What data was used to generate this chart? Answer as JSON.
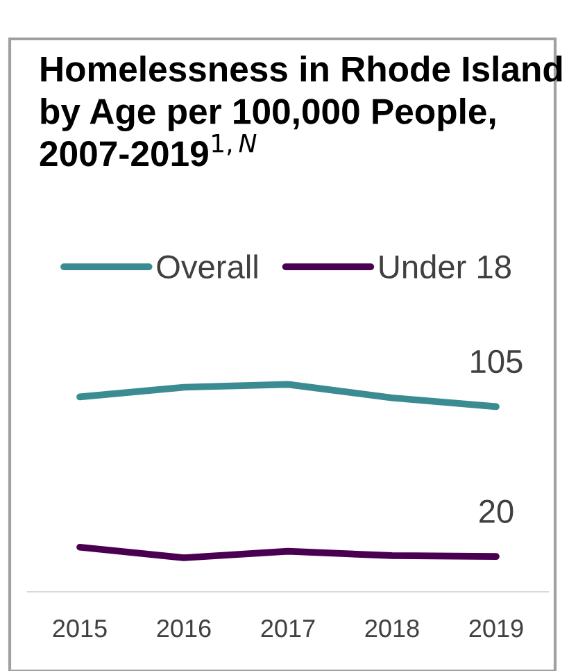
{
  "chart_data": {
    "type": "line",
    "title": "Homelessness in Rhode Island by Age per 100,000 People, 2007-2019$^{1,N}$",
    "categories": [
      "2015",
      "2016",
      "2017",
      "2018",
      "2019"
    ],
    "series": [
      {
        "name": "Overall",
        "color": "#3a8c92",
        "values": [
          110.5,
          116,
          117.6,
          110,
          105
        ],
        "value_labels": [
          null,
          null,
          null,
          null,
          "105"
        ]
      },
      {
        "name": "Under 18",
        "color": "#4a0050",
        "values": [
          25.3,
          19.3,
          23,
          20.5,
          20
        ],
        "value_labels": [
          null,
          null,
          null,
          null,
          "20"
        ]
      }
    ],
    "tick_labels": "x",
    "grid": false,
    "legend": "top",
    "marker": "none",
    "line_style": "solid"
  }
}
